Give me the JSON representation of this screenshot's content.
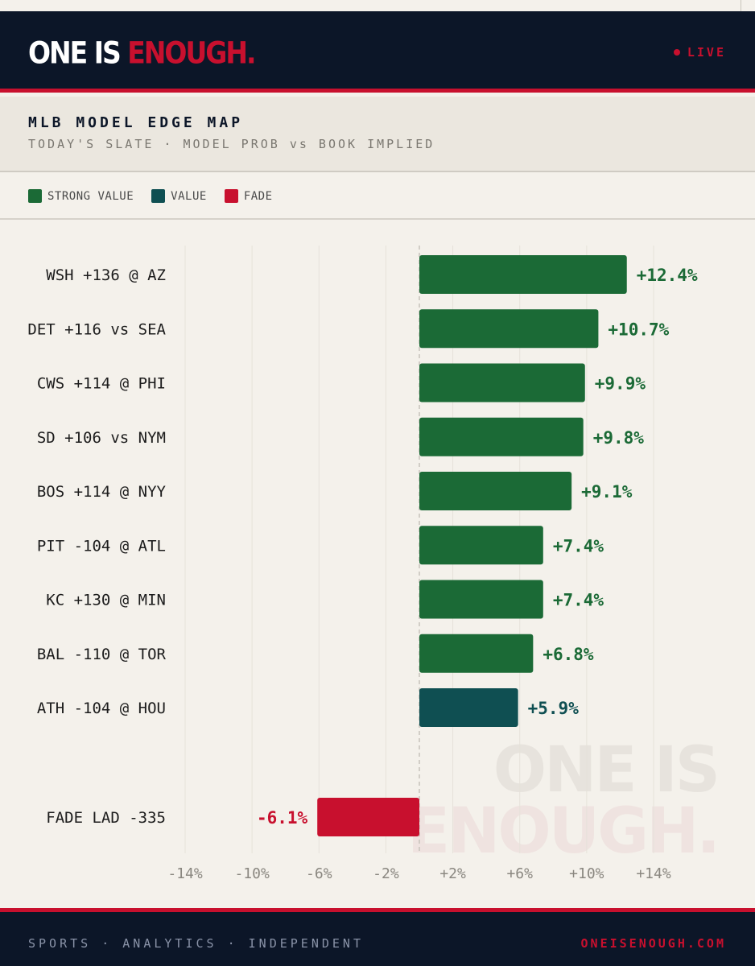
{
  "brand": {
    "logo_white": "ONE IS",
    "logo_red": "ENOUGH.",
    "live_label": "LIVE"
  },
  "title": "MLB MODEL EDGE MAP",
  "subtitle": "TODAY'S SLATE · MODEL PROB vs BOOK IMPLIED",
  "legend": [
    {
      "label": "STRONG VALUE",
      "color": "#1b6a36"
    },
    {
      "label": "VALUE",
      "color": "#0f4f52"
    },
    {
      "label": "FADE",
      "color": "#c8102e"
    }
  ],
  "watermark": {
    "line1": "ONE IS",
    "line2": "ENOUGH."
  },
  "chart_data": {
    "type": "bar",
    "orientation": "horizontal",
    "xlim": [
      -14,
      14
    ],
    "x_ticks": [
      "-14%",
      "-10%",
      "-6%",
      "-2%",
      "+2%",
      "+6%",
      "+10%",
      "+14%"
    ],
    "x_tick_values": [
      -14,
      -10,
      -6,
      -2,
      2,
      6,
      10,
      14
    ],
    "grid": true,
    "zero_line": "dashed",
    "bars": [
      {
        "category": "WSH +136 @ AZ",
        "value": 12.4,
        "label": "+12.4%",
        "group": "STRONG VALUE"
      },
      {
        "category": "DET +116 vs SEA",
        "value": 10.7,
        "label": "+10.7%",
        "group": "STRONG VALUE"
      },
      {
        "category": "CWS +114 @ PHI",
        "value": 9.9,
        "label": "+9.9%",
        "group": "STRONG VALUE"
      },
      {
        "category": "SD +106 vs NYM",
        "value": 9.8,
        "label": "+9.8%",
        "group": "STRONG VALUE"
      },
      {
        "category": "BOS +114 @ NYY",
        "value": 9.1,
        "label": "+9.1%",
        "group": "STRONG VALUE"
      },
      {
        "category": "PIT -104 @ ATL",
        "value": 7.4,
        "label": "+7.4%",
        "group": "STRONG VALUE"
      },
      {
        "category": "KC +130 @ MIN",
        "value": 7.4,
        "label": "+7.4%",
        "group": "STRONG VALUE"
      },
      {
        "category": "BAL -110 @ TOR",
        "value": 6.8,
        "label": "+6.8%",
        "group": "STRONG VALUE"
      },
      {
        "category": "ATH -104 @ HOU",
        "value": 5.9,
        "label": "+5.9%",
        "group": "VALUE"
      },
      {
        "category": "FADE LAD -335",
        "value": -6.1,
        "label": "-6.1%",
        "group": "FADE"
      }
    ]
  },
  "footer": {
    "tagline": "SPORTS · ANALYTICS · INDEPENDENT",
    "site": "ONEISENOUGH.COM"
  }
}
